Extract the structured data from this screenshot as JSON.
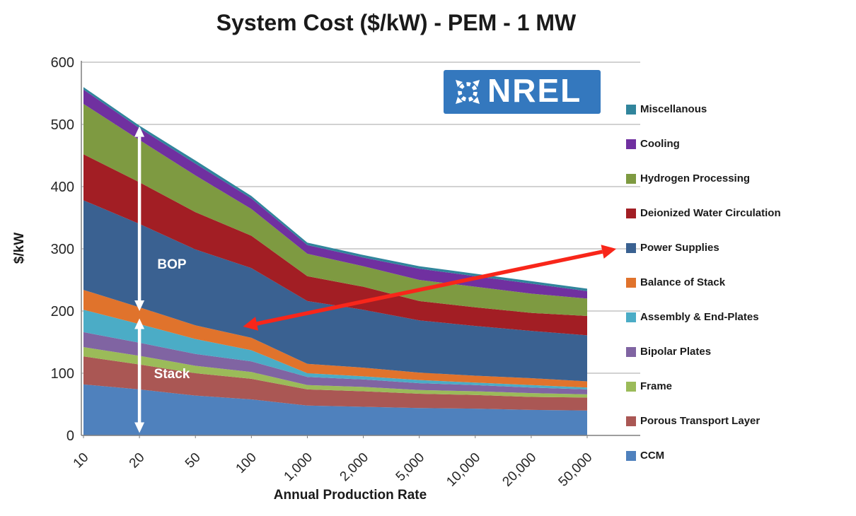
{
  "header": {
    "title": "System Cost ($/kW) - PEM - 1 MW"
  },
  "logo": {
    "text": "NREL",
    "bg_color": "#3478BE"
  },
  "chart_data": {
    "type": "area",
    "stacked": true,
    "title": "System Cost ($/kW) - PEM - 1 MW",
    "xlabel": "Annual Production Rate",
    "ylabel": "$/kW",
    "ylim": [
      0,
      600
    ],
    "ytick_interval": 100,
    "ytick_labels": [
      "0",
      "100",
      "200",
      "300",
      "400",
      "500",
      "600"
    ],
    "grid": true,
    "legend_position": "right",
    "categories": [
      "10",
      "20",
      "50",
      "100",
      "1,000",
      "2,000",
      "5,000",
      "10,000",
      "20,000",
      "50,000"
    ],
    "series": [
      {
        "name": "CCM",
        "color": "#4F81BD",
        "values": [
          82,
          74,
          64,
          58,
          48,
          46,
          44,
          43,
          41,
          40
        ]
      },
      {
        "name": "Porous Transport Layer",
        "color": "#AA5754",
        "values": [
          45,
          40,
          36,
          33,
          26,
          25,
          23,
          22,
          21,
          21
        ]
      },
      {
        "name": "Frame",
        "color": "#9BBB59",
        "values": [
          15,
          14,
          12,
          11,
          7,
          7,
          6,
          6,
          6,
          5
        ]
      },
      {
        "name": "Bipolar Plates",
        "color": "#8064A2",
        "values": [
          24,
          21,
          19,
          17,
          13,
          12,
          11,
          10,
          9,
          8
        ]
      },
      {
        "name": "Assembly & End-Plates",
        "color": "#4BACC6",
        "values": [
          36,
          30,
          24,
          18,
          6,
          5,
          5,
          4,
          4,
          3
        ]
      },
      {
        "name": "Balance of Stack",
        "color": "#E0732C",
        "values": [
          32,
          27,
          22,
          20,
          15,
          14,
          12,
          11,
          11,
          10
        ]
      },
      {
        "name": "Power Supplies",
        "color": "#3A6191",
        "values": [
          144,
          134,
          122,
          112,
          101,
          93,
          84,
          80,
          76,
          74
        ]
      },
      {
        "name": "Deionized Water Circulation",
        "color": "#A21E24",
        "values": [
          74,
          67,
          60,
          52,
          40,
          37,
          31,
          30,
          29,
          31
        ]
      },
      {
        "name": "Hydrogen Processing",
        "color": "#7E9A41",
        "values": [
          81,
          68,
          59,
          43,
          36,
          33,
          34,
          33,
          31,
          28
        ]
      },
      {
        "name": "Cooling",
        "color": "#7030A0",
        "values": [
          23,
          19,
          19,
          17,
          14,
          14,
          18,
          17,
          16,
          12
        ]
      },
      {
        "name": "Miscellanous",
        "color": "#31859C",
        "values": [
          4,
          4,
          5,
          4,
          4,
          4,
          4,
          4,
          4,
          4
        ]
      }
    ],
    "legend_items": [
      "Miscellanous",
      "Cooling",
      "Hydrogen Processing",
      "Deionized Water Circulation",
      "Power Supplies",
      "Balance of Stack",
      "Assembly & End-Plates",
      "Bipolar Plates",
      "Frame",
      "Porous Transport Layer",
      "CCM"
    ],
    "annotations": {
      "bop_arrow": {
        "label": "BOP",
        "x_index": 1,
        "from_value": 497,
        "to_value": 200,
        "color": "#FFFFFF",
        "label_x_index": 1.32,
        "label_value": 268
      },
      "stack_arrow": {
        "label": "Stack",
        "x_index": 1,
        "from_value": 188,
        "to_value": 4,
        "color": "#FFFFFF",
        "label_x_index": 1.26,
        "label_value": 92
      },
      "power_supplies_arrow": {
        "color": "#F8261A",
        "from": [
          2.85,
          175
        ],
        "to": [
          9.52,
          300
        ]
      }
    }
  }
}
